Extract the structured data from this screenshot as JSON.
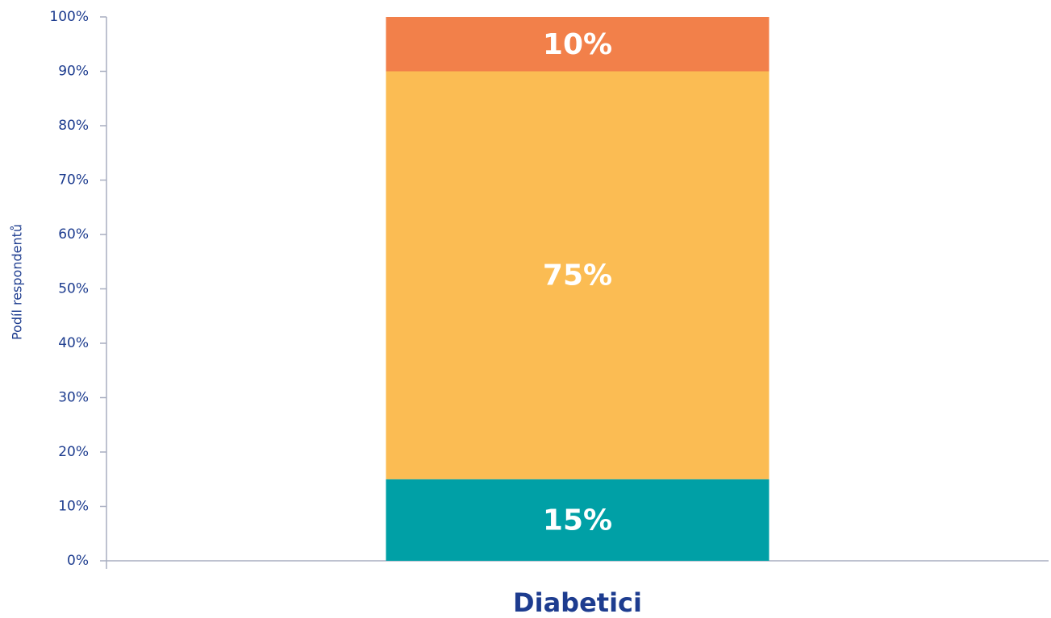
{
  "chart_data": {
    "type": "stacked_bar",
    "y_label": "Podíl respondentů",
    "categories": [
      "Diabetici"
    ],
    "series": [
      {
        "color": "#00a0a6",
        "values": [
          15
        ],
        "value_labels": [
          "15%"
        ]
      },
      {
        "color": "#fbbc53",
        "values": [
          75
        ],
        "value_labels": [
          "75%"
        ]
      },
      {
        "color": "#f2804a",
        "values": [
          10
        ],
        "value_labels": [
          "10%"
        ]
      }
    ],
    "ylim": [
      0,
      100
    ],
    "yticks": [
      {
        "value": 0,
        "label": "0%"
      },
      {
        "value": 10,
        "label": "10%"
      },
      {
        "value": 20,
        "label": "20%"
      },
      {
        "value": 30,
        "label": "30%"
      },
      {
        "value": 40,
        "label": "40%"
      },
      {
        "value": 50,
        "label": "50%"
      },
      {
        "value": 60,
        "label": "60%"
      },
      {
        "value": 70,
        "label": "70%"
      },
      {
        "value": 80,
        "label": "80%"
      },
      {
        "value": 90,
        "label": "90%"
      },
      {
        "value": 100,
        "label": "100%"
      }
    ],
    "grid": false
  }
}
